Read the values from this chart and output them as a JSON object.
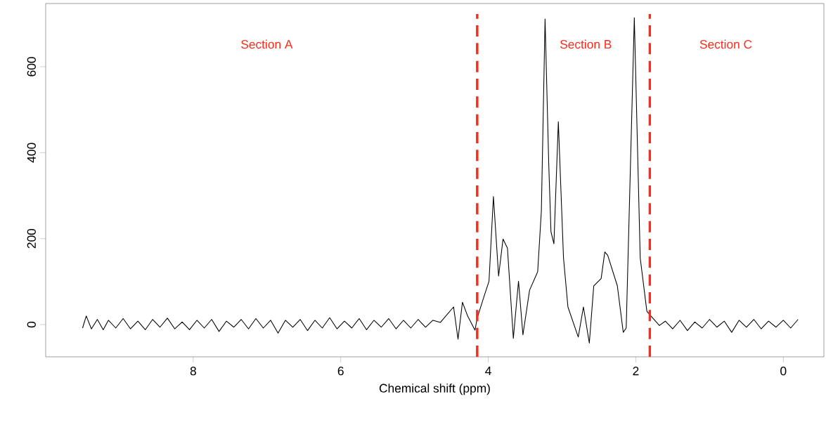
{
  "chart_data": {
    "type": "line",
    "xlabel": "Chemical shift (ppm)",
    "xlim": [
      10,
      -0.55
    ],
    "ylim": [
      -75,
      747
    ],
    "xticks": [
      0,
      2,
      4,
      6,
      8
    ],
    "yticks": [
      0,
      200,
      400,
      600
    ],
    "grid": false,
    "series": [
      {
        "color": "#000000",
        "x": [
          9.5,
          9.45,
          9.38,
          9.3,
          9.22,
          9.15,
          9.05,
          8.95,
          8.85,
          8.75,
          8.65,
          8.55,
          8.45,
          8.35,
          8.25,
          8.15,
          8.05,
          7.95,
          7.85,
          7.75,
          7.65,
          7.55,
          7.45,
          7.35,
          7.25,
          7.15,
          7.05,
          6.95,
          6.85,
          6.75,
          6.65,
          6.55,
          6.45,
          6.35,
          6.25,
          6.15,
          6.05,
          5.95,
          5.85,
          5.75,
          5.65,
          5.55,
          5.45,
          5.35,
          5.25,
          5.15,
          5.05,
          4.95,
          4.85,
          4.75,
          4.65,
          4.6,
          4.47,
          4.41,
          4.35,
          4.28,
          4.18,
          4.15,
          4.06,
          3.99,
          3.93,
          3.86,
          3.8,
          3.74,
          3.66,
          3.59,
          3.53,
          3.44,
          3.33,
          3.28,
          3.23,
          3.18,
          3.15,
          3.11,
          3.05,
          2.98,
          2.92,
          2.78,
          2.71,
          2.63,
          2.57,
          2.47,
          2.42,
          2.38,
          2.25,
          2.17,
          2.13,
          2.02,
          1.94,
          1.85,
          1.78,
          1.68,
          1.6,
          1.5,
          1.4,
          1.3,
          1.2,
          1.1,
          1.0,
          0.9,
          0.8,
          0.7,
          0.6,
          0.5,
          0.4,
          0.3,
          0.2,
          0.1,
          0.0,
          -0.1,
          -0.2
        ],
        "values": [
          -8,
          20,
          -10,
          12,
          -12,
          10,
          -8,
          14,
          -10,
          8,
          -12,
          12,
          -6,
          15,
          -10,
          6,
          -12,
          10,
          -8,
          12,
          -16,
          8,
          -6,
          12,
          -10,
          14,
          -8,
          10,
          -20,
          10,
          -6,
          12,
          -14,
          10,
          -8,
          16,
          -10,
          8,
          -8,
          14,
          -12,
          10,
          -6,
          14,
          -10,
          10,
          -8,
          12,
          -6,
          10,
          5,
          15,
          41,
          -34,
          52,
          20,
          -13,
          15,
          64,
          101,
          298,
          113,
          199,
          178,
          -32,
          101,
          -24,
          80,
          123,
          265,
          711,
          374,
          216,
          188,
          472,
          155,
          41,
          -29,
          41,
          -43,
          90,
          107,
          169,
          161,
          90,
          -18,
          -8,
          714,
          155,
          31,
          17,
          -2,
          8,
          -10,
          10,
          -14,
          6,
          -8,
          12,
          -6,
          8,
          -18,
          10,
          -6,
          12,
          -10,
          8,
          -6,
          10,
          -8,
          12
        ]
      }
    ],
    "ref_lines": [
      {
        "axis": "x",
        "value": 4.15,
        "color": "#ff2a1a",
        "line_style": "dashed"
      },
      {
        "axis": "x",
        "value": 1.81,
        "color": "#ff2a1a",
        "line_style": "dashed"
      }
    ],
    "annotations": [
      "Section A",
      "Section B",
      "Section C"
    ]
  }
}
